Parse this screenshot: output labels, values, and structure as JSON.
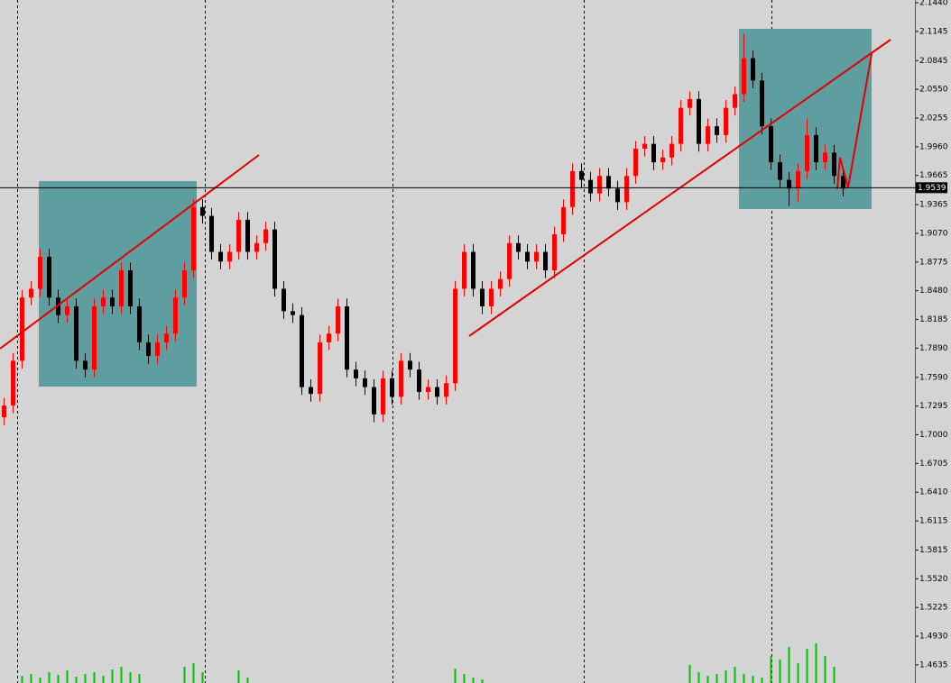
{
  "chart_data": {
    "type": "candlestick",
    "open": [
      1.718,
      1.73,
      1.776,
      1.841,
      1.85,
      1.883,
      1.841,
      1.823,
      1.832,
      1.776,
      1.767,
      1.832,
      1.841,
      1.832,
      1.869,
      1.832,
      1.795,
      1.781,
      1.795,
      1.804,
      1.841,
      1.869,
      1.934,
      1.925,
      1.888,
      1.878,
      1.888,
      1.921,
      1.888,
      1.897,
      1.911,
      1.85,
      1.827,
      1.823,
      1.749,
      1.742,
      1.795,
      1.804,
      1.832,
      1.767,
      1.758,
      1.749,
      1.721,
      1.758,
      1.739,
      1.776,
      1.767,
      1.744,
      1.749,
      1.739,
      1.753,
      1.85,
      1.888,
      1.85,
      1.832,
      1.85,
      1.86,
      1.897,
      1.888,
      1.878,
      1.888,
      1.869,
      1.906,
      1.934,
      1.971,
      1.962,
      1.948,
      1.966,
      1.953,
      1.939,
      1.966,
      1.994,
      1.999,
      1.98,
      1.985,
      1.999,
      2.036,
      2.045,
      1.999,
      2.017,
      2.008,
      2.036,
      2.05,
      2.087,
      2.064,
      2.017,
      1.98,
      1.962,
      1.953,
      1.971,
      2.008,
      1.98,
      1.99,
      1.966
    ],
    "high": [
      1.738,
      1.784,
      1.849,
      1.858,
      1.891,
      1.891,
      1.849,
      1.84,
      1.84,
      1.784,
      1.84,
      1.849,
      1.849,
      1.877,
      1.877,
      1.84,
      1.803,
      1.803,
      1.812,
      1.849,
      1.877,
      1.942,
      1.942,
      1.933,
      1.896,
      1.896,
      1.929,
      1.929,
      1.905,
      1.919,
      1.919,
      1.858,
      1.835,
      1.831,
      1.757,
      1.803,
      1.812,
      1.84,
      1.84,
      1.775,
      1.766,
      1.757,
      1.766,
      1.766,
      1.784,
      1.784,
      1.775,
      1.757,
      1.757,
      1.761,
      1.858,
      1.896,
      1.896,
      1.858,
      1.858,
      1.868,
      1.905,
      1.905,
      1.896,
      1.896,
      1.896,
      1.914,
      1.942,
      1.979,
      1.979,
      1.97,
      1.974,
      1.974,
      1.961,
      1.974,
      2.002,
      2.007,
      2.007,
      1.993,
      2.007,
      2.044,
      2.053,
      2.053,
      2.025,
      2.025,
      2.044,
      2.058,
      2.112,
      2.095,
      2.072,
      2.025,
      1.988,
      1.97,
      1.979,
      2.025,
      2.016,
      1.998,
      1.998,
      1.974
    ],
    "low": [
      1.71,
      1.722,
      1.768,
      1.833,
      1.842,
      1.833,
      1.815,
      1.815,
      1.768,
      1.759,
      1.759,
      1.824,
      1.824,
      1.824,
      1.824,
      1.787,
      1.773,
      1.773,
      1.787,
      1.796,
      1.833,
      1.861,
      1.917,
      1.88,
      1.87,
      1.87,
      1.88,
      1.88,
      1.88,
      1.889,
      1.842,
      1.819,
      1.815,
      1.741,
      1.734,
      1.734,
      1.787,
      1.796,
      1.759,
      1.75,
      1.741,
      1.713,
      1.713,
      1.731,
      1.731,
      1.759,
      1.736,
      1.736,
      1.731,
      1.731,
      1.745,
      1.842,
      1.842,
      1.824,
      1.824,
      1.842,
      1.852,
      1.88,
      1.87,
      1.87,
      1.861,
      1.861,
      1.898,
      1.926,
      1.954,
      1.94,
      1.94,
      1.945,
      1.931,
      1.931,
      1.958,
      1.986,
      1.972,
      1.972,
      1.977,
      1.991,
      2.028,
      1.991,
      1.991,
      2.0,
      2.0,
      2.028,
      2.042,
      2.056,
      2.009,
      1.972,
      1.954,
      1.935,
      1.94,
      1.963,
      1.972,
      1.972,
      1.958,
      1.945
    ],
    "close": [
      1.73,
      1.776,
      1.841,
      1.85,
      1.883,
      1.841,
      1.823,
      1.832,
      1.776,
      1.767,
      1.832,
      1.841,
      1.832,
      1.869,
      1.832,
      1.795,
      1.781,
      1.795,
      1.804,
      1.841,
      1.869,
      1.934,
      1.925,
      1.888,
      1.878,
      1.888,
      1.921,
      1.888,
      1.897,
      1.911,
      1.85,
      1.827,
      1.823,
      1.749,
      1.742,
      1.795,
      1.804,
      1.832,
      1.767,
      1.758,
      1.749,
      1.721,
      1.758,
      1.739,
      1.776,
      1.767,
      1.744,
      1.749,
      1.739,
      1.753,
      1.85,
      1.888,
      1.85,
      1.832,
      1.85,
      1.86,
      1.897,
      1.888,
      1.878,
      1.888,
      1.869,
      1.906,
      1.934,
      1.971,
      1.962,
      1.948,
      1.966,
      1.953,
      1.939,
      1.966,
      1.994,
      1.999,
      1.98,
      1.985,
      1.999,
      2.036,
      2.045,
      1.999,
      2.017,
      2.008,
      2.036,
      2.05,
      2.087,
      2.064,
      2.017,
      1.98,
      1.962,
      1.953,
      1.971,
      2.008,
      1.98,
      1.99,
      1.966,
      1.953
    ],
    "volume": [
      0,
      0,
      8,
      10,
      6,
      12,
      9,
      14,
      7,
      10,
      12,
      8,
      15,
      18,
      12,
      10,
      0,
      0,
      0,
      0,
      18,
      22,
      12,
      0,
      0,
      0,
      14,
      6,
      0,
      0,
      0,
      0,
      0,
      0,
      0,
      0,
      0,
      0,
      0,
      0,
      0,
      0,
      0,
      0,
      0,
      0,
      0,
      0,
      0,
      0,
      16,
      10,
      6,
      4,
      0,
      0,
      0,
      0,
      0,
      0,
      0,
      0,
      0,
      0,
      0,
      0,
      0,
      0,
      0,
      0,
      0,
      0,
      0,
      0,
      0,
      0,
      20,
      12,
      8,
      10,
      14,
      18,
      10,
      8,
      6,
      30,
      26,
      40,
      22,
      38,
      44,
      30,
      18,
      0
    ],
    "up_color": "#ff0000",
    "down_color": "#000000",
    "volume_color": "#00c000",
    "current_price": 1.9539,
    "ylim": [
      1.4449,
      2.1468
    ],
    "yticks": [
      {
        "value": 2.144,
        "label": "2.1440"
      },
      2.1145,
      2.0845,
      {
        "value": 2.055,
        "label": "2.0550"
      },
      2.0255,
      {
        "value": 1.996,
        "label": "1.9960"
      },
      1.9665,
      1.9365,
      {
        "value": 1.907,
        "label": "1.9070"
      },
      1.8775,
      {
        "value": 1.848,
        "label": "1.8480"
      },
      1.8185,
      {
        "value": 1.789,
        "label": "1.7890"
      },
      {
        "value": 1.759,
        "label": "1.7590"
      },
      1.7295,
      {
        "value": 1.7,
        "label": "1.7000"
      },
      1.6705,
      {
        "value": 1.641,
        "label": "1.6410"
      },
      1.6115,
      1.5815,
      {
        "value": 1.552,
        "label": "1.5520"
      },
      1.5225,
      {
        "value": 1.493,
        "label": "1.4930"
      },
      1.4635
    ]
  }
}
